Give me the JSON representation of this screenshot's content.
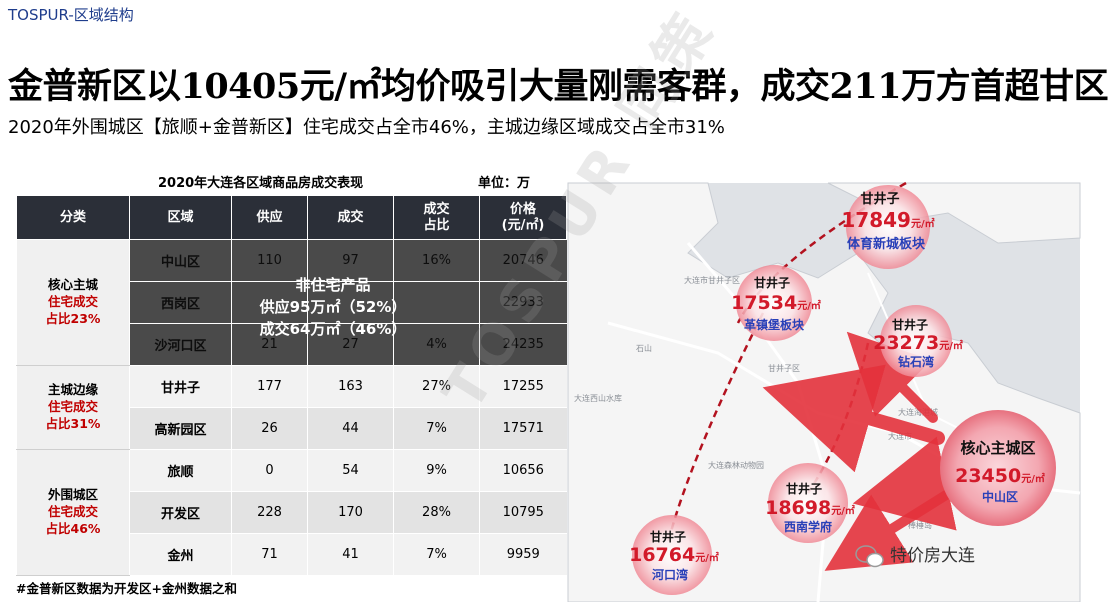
{
  "brand": "TOSPUR-区域结构",
  "headline": "金普新区以10405元/㎡均价吸引大量刚需客群，成交211万方首超甘区",
  "subheadline": "2020年外围城区【旅顺+金普新区】住宅成交占全市46%，主城边缘区域成交占全市31%",
  "table": {
    "title": "2020年大连各区域商品房成交表现",
    "unit": "单位：万",
    "headers": [
      "分类",
      "区域",
      "供应",
      "成交",
      "成交\n占比",
      "价格\n(元/㎡)"
    ],
    "groups": [
      {
        "name": "核心主城",
        "share_label": "住宅成交",
        "share_value": "占比23%",
        "rows": [
          {
            "district": "中山区",
            "supply": "110",
            "deal": "97",
            "ratio": "16%",
            "price": "20746"
          },
          {
            "district": "西岗区",
            "supply": "",
            "deal": "",
            "ratio": "",
            "price": "22933"
          },
          {
            "district": "沙河口区",
            "supply": "21",
            "deal": "27",
            "ratio": "4%",
            "price": "24235"
          }
        ]
      },
      {
        "name": "主城边缘",
        "share_label": "住宅成交",
        "share_value": "占比31%",
        "rows": [
          {
            "district": "甘井子",
            "supply": "177",
            "deal": "163",
            "ratio": "27%",
            "price": "17255"
          },
          {
            "district": "高新园区",
            "supply": "26",
            "deal": "44",
            "ratio": "7%",
            "price": "17571"
          }
        ]
      },
      {
        "name": "外围城区",
        "share_label": "住宅成交",
        "share_value": "占比46%",
        "rows": [
          {
            "district": "旅顺",
            "supply": "0",
            "deal": "54",
            "ratio": "9%",
            "price": "10656"
          },
          {
            "district": "开发区",
            "supply": "228",
            "deal": "170",
            "ratio": "28%",
            "price": "10795"
          },
          {
            "district": "金州",
            "supply": "71",
            "deal": "41",
            "ratio": "7%",
            "price": "9959"
          }
        ]
      }
    ],
    "overlay": {
      "title": "非住宅产品",
      "supply": "供应95万㎡（52%）",
      "deal": "成交64万㎡（46%）"
    },
    "footnote": "#金普新区数据为开发区+金州数据之和"
  },
  "watermark": "TOSPUR 同策",
  "map": {
    "colors": {
      "marker": "#d21a2a",
      "marker_glow": "#f4a3ab",
      "sub_label": "#2940b8",
      "arrow": "#e4323c",
      "sea": "#dfe2e6",
      "land": "#f6f6f6"
    },
    "markers": [
      {
        "area": "甘井子",
        "price": "17849",
        "unit": "元/㎡",
        "plate": "体育新城板块"
      },
      {
        "area": "甘井子",
        "price": "17534",
        "unit": "元/㎡",
        "plate": "革镇堡板块"
      },
      {
        "area": "甘井子",
        "price": "23273",
        "unit": "元/㎡",
        "plate": "钻石湾"
      },
      {
        "area": "核心主城区",
        "price": "23450",
        "unit": "元/㎡",
        "plate": "中山区"
      },
      {
        "area": "甘井子",
        "price": "18698",
        "unit": "元/㎡",
        "plate": "西南学府"
      },
      {
        "area": "甘井子",
        "price": "16764",
        "unit": "元/㎡",
        "plate": "河口湾"
      }
    ],
    "place_names": [
      "甘井子区",
      "大连市",
      "大连市甘井子区",
      "大连西山水库",
      "大连森林动物园",
      "大连海港城",
      "石山",
      "棒棰岛"
    ],
    "credit": "特价房大连"
  }
}
